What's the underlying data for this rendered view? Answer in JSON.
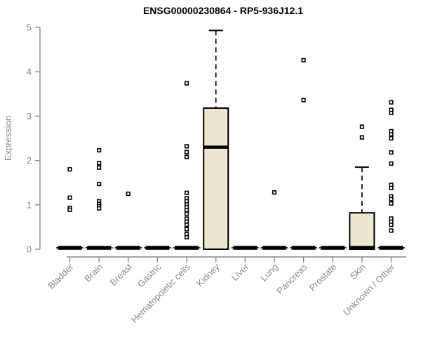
{
  "colors": {
    "box_fill": "#ECE7CE",
    "box_stroke": "#000000",
    "median": "#000000",
    "whisker": "#000000",
    "outlier_stroke": "#000000",
    "outlier_fill": "#ffffff",
    "axis": "#8A8A8A",
    "tick_label": "#8A8A8A",
    "title": "#000000"
  },
  "chart_data": {
    "type": "boxplot",
    "title": "ENSG00000230864 - RP5-936J12.1",
    "ylabel": "Expression",
    "xlabel": "",
    "ylim": [
      0,
      5
    ],
    "yticks": [
      0,
      1,
      2,
      3,
      4,
      5
    ],
    "grid": false,
    "legend": false,
    "categories": [
      "Bladder",
      "Brain",
      "Breast",
      "Gastric",
      "Hematopoietic cells",
      "Kidney",
      "Liver",
      "Lung",
      "Pancreas",
      "Prostate",
      "Skin",
      "Unknown / Other"
    ],
    "boxes": [
      {
        "label": "Bladder",
        "q1": 0,
        "median": 0,
        "q3": 0,
        "whisker_low": 0,
        "whisker_high": 0,
        "outliers": [
          1.8,
          1.16,
          0.93,
          0.89
        ]
      },
      {
        "label": "Brain",
        "q1": 0,
        "median": 0,
        "q3": 0,
        "whisker_low": 0,
        "whisker_high": 0,
        "outliers": [
          2.23,
          1.94,
          1.84,
          1.47,
          1.08,
          1.02,
          0.97,
          0.92
        ]
      },
      {
        "label": "Breast",
        "q1": 0,
        "median": 0,
        "q3": 0,
        "whisker_low": 0,
        "whisker_high": 0,
        "outliers": [
          1.25
        ]
      },
      {
        "label": "Gastric",
        "q1": 0,
        "median": 0,
        "q3": 0,
        "whisker_low": 0,
        "whisker_high": 0,
        "outliers": []
      },
      {
        "label": "Hematopoietic cells",
        "q1": 0,
        "median": 0,
        "q3": 0,
        "whisker_low": 0,
        "whisker_high": 0,
        "outliers": [
          3.74,
          2.32,
          2.19,
          2.08,
          1.27,
          1.15,
          1.08,
          1.01,
          0.95,
          0.88,
          0.8,
          0.69,
          0.62,
          0.55,
          0.45,
          0.34,
          0.27
        ]
      },
      {
        "label": "Kidney",
        "q1": 0,
        "median": 2.3,
        "q3": 3.18,
        "whisker_low": 0,
        "whisker_high": 4.93,
        "outliers": []
      },
      {
        "label": "Liver",
        "q1": 0,
        "median": 0,
        "q3": 0,
        "whisker_low": 0,
        "whisker_high": 0,
        "outliers": []
      },
      {
        "label": "Lung",
        "q1": 0,
        "median": 0,
        "q3": 0,
        "whisker_low": 0,
        "whisker_high": 0,
        "outliers": [
          1.28
        ]
      },
      {
        "label": "Pancreas",
        "q1": 0,
        "median": 0,
        "q3": 0,
        "whisker_low": 0,
        "whisker_high": 0,
        "outliers": [
          4.26,
          3.36
        ]
      },
      {
        "label": "Prostate",
        "q1": 0,
        "median": 0,
        "q3": 0,
        "whisker_low": 0,
        "whisker_high": 0,
        "outliers": []
      },
      {
        "label": "Skin",
        "q1": 0,
        "median": 0,
        "q3": 0.82,
        "whisker_low": 0,
        "whisker_high": 1.85,
        "outliers": [
          2.76,
          2.52
        ]
      },
      {
        "label": "Unknown / Other",
        "q1": 0,
        "median": 0,
        "q3": 0,
        "whisker_low": 0,
        "whisker_high": 0,
        "outliers": [
          3.31,
          3.14,
          3.07,
          2.66,
          2.59,
          2.5,
          2.18,
          1.93,
          1.45,
          1.38,
          1.19,
          1.13,
          1.03,
          0.69,
          0.62,
          0.55,
          0.42
        ]
      }
    ]
  }
}
